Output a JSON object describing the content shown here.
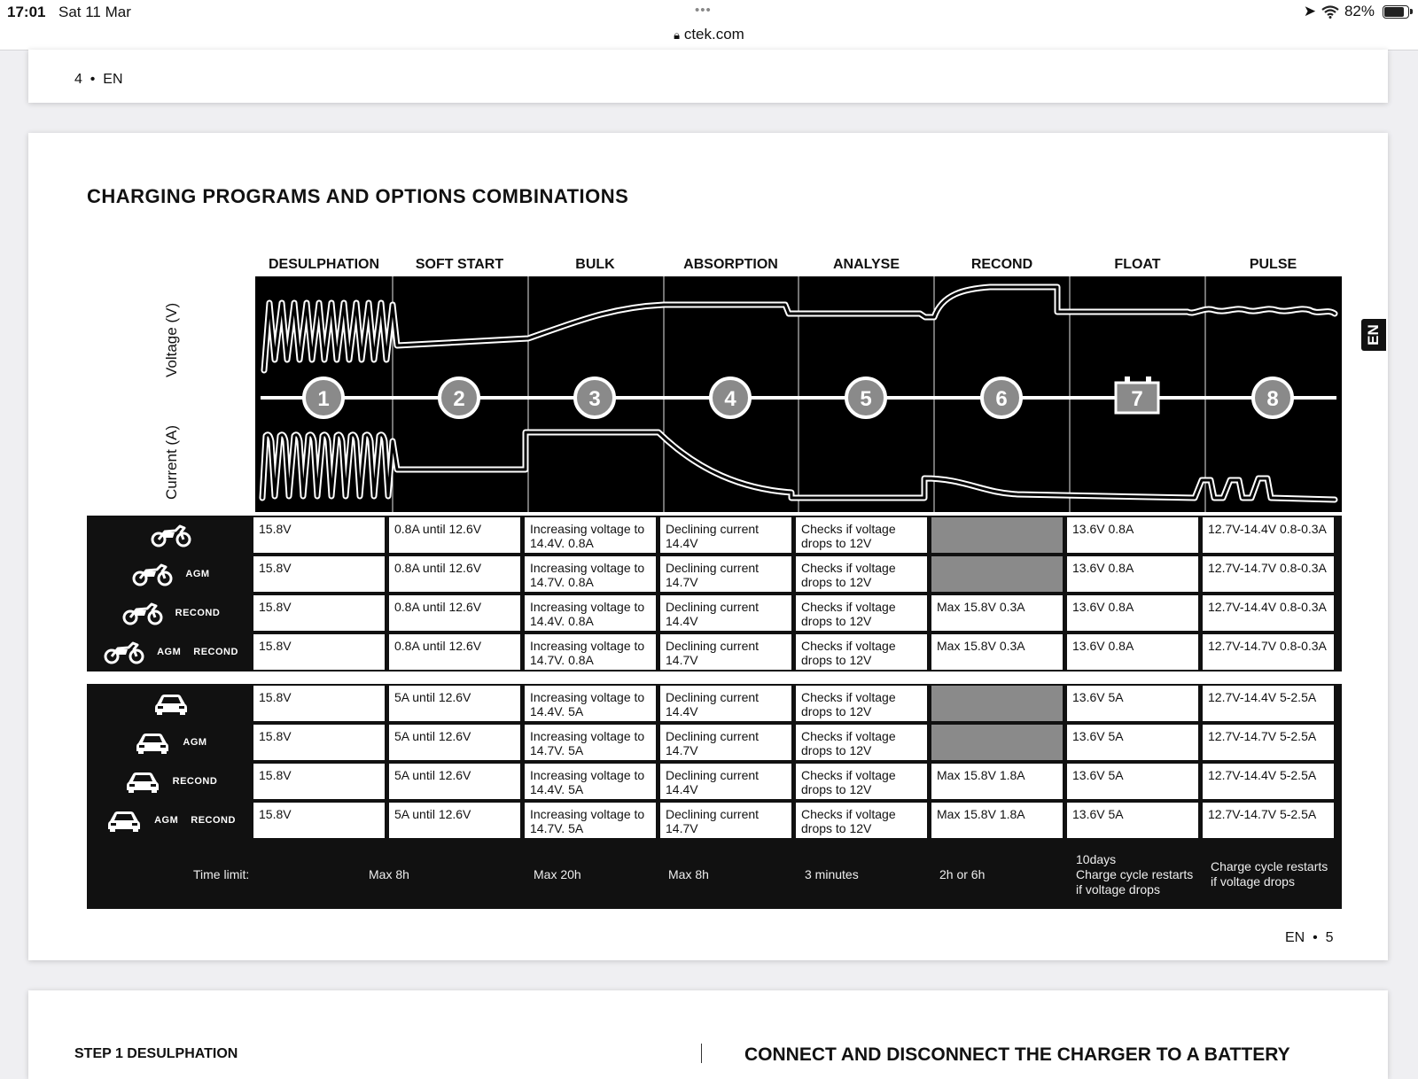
{
  "status_bar": {
    "time": "17:01",
    "date": "Sat 11 Mar",
    "dots": "•••",
    "url": "ctek.com",
    "battery": "82%"
  },
  "page_prev": {
    "page_label": "4  •  EN"
  },
  "doc": {
    "title": "CHARGING PROGRAMS AND OPTIONS COMBINATIONS",
    "lang_tab": "EN",
    "page_label": "EN  •  5",
    "axis_voltage": "Voltage (V)",
    "axis_current": "Current (A)",
    "columns": [
      "DESULPHATION",
      "SOFT START",
      "BULK",
      "ABSORPTION",
      "ANALYSE",
      "RECOND",
      "FLOAT",
      "PULSE"
    ],
    "steps": [
      "1",
      "2",
      "3",
      "4",
      "5",
      "6",
      "7",
      "8"
    ]
  },
  "motorcycle_rows": [
    {
      "labels": [],
      "cells": [
        "15.8V",
        "0.8A until 12.6V",
        "Increasing voltage to 14.4V. 0.8A",
        "Declining current 14.4V",
        "Checks if voltage drops to 12V",
        "",
        "13.6V 0.8A",
        "12.7V-14.4V 0.8-0.3A"
      ]
    },
    {
      "labels": [
        "AGM"
      ],
      "cells": [
        "15.8V",
        "0.8A until 12.6V",
        "Increasing voltage to 14.7V. 0.8A",
        "Declining current 14.7V",
        "Checks if voltage drops to 12V",
        "",
        "13.6V 0.8A",
        "12.7V-14.7V 0.8-0.3A"
      ]
    },
    {
      "labels": [
        "RECOND"
      ],
      "cells": [
        "15.8V",
        "0.8A until 12.6V",
        "Increasing voltage to 14.4V. 0.8A",
        "Declining current 14.4V",
        "Checks if voltage drops to 12V",
        "Max 15.8V 0.3A",
        "13.6V 0.8A",
        "12.7V-14.4V 0.8-0.3A"
      ]
    },
    {
      "labels": [
        "AGM",
        "RECOND"
      ],
      "cells": [
        "15.8V",
        "0.8A until 12.6V",
        "Increasing voltage to 14.7V. 0.8A",
        "Declining current 14.7V",
        "Checks if voltage drops to 12V",
        "Max 15.8V 0.3A",
        "13.6V 0.8A",
        "12.7V-14.7V 0.8-0.3A"
      ]
    }
  ],
  "car_rows": [
    {
      "labels": [],
      "cells": [
        "15.8V",
        "5A until 12.6V",
        "Increasing voltage to 14.4V. 5A",
        "Declining current 14.4V",
        "Checks if voltage drops to 12V",
        "",
        "13.6V 5A",
        "12.7V-14.4V 5-2.5A"
      ]
    },
    {
      "labels": [
        "AGM"
      ],
      "cells": [
        "15.8V",
        "5A until 12.6V",
        "Increasing voltage to 14.7V. 5A",
        "Declining current 14.7V",
        "Checks if voltage drops to 12V",
        "",
        "13.6V 5A",
        "12.7V-14.7V 5-2.5A"
      ]
    },
    {
      "labels": [
        "RECOND"
      ],
      "cells": [
        "15.8V",
        "5A until 12.6V",
        "Increasing voltage to 14.4V. 5A",
        "Declining current 14.4V",
        "Checks if voltage drops to 12V",
        "Max 15.8V 1.8A",
        "13.6V 5A",
        "12.7V-14.4V 5-2.5A"
      ]
    },
    {
      "labels": [
        "AGM",
        "RECOND"
      ],
      "cells": [
        "15.8V",
        "5A until 12.6V",
        "Increasing voltage to 14.7V. 5A",
        "Declining current 14.7V",
        "Checks if voltage drops to 12V",
        "Max 15.8V 1.8A",
        "13.6V 5A",
        "12.7V-14.7V 5-2.5A"
      ]
    }
  ],
  "time_limits": {
    "label": "Time limit:",
    "soft_start": "Max 8h",
    "bulk": "Max 20h",
    "absorption": "Max 8h",
    "analyse": "3 minutes",
    "recond": "2h or 6h",
    "float": "10days\nCharge cycle restarts\nif voltage drops",
    "pulse": "Charge cycle restarts\nif voltage drops"
  },
  "next_page": {
    "step_title": "STEP 1 DESULPHATION",
    "connect_title": "CONNECT AND DISCONNECT THE CHARGER TO A BATTERY"
  },
  "icons": {
    "motorcycle": "motorcycle-icon",
    "car": "car-icon",
    "battery_step": "battery-icon"
  }
}
